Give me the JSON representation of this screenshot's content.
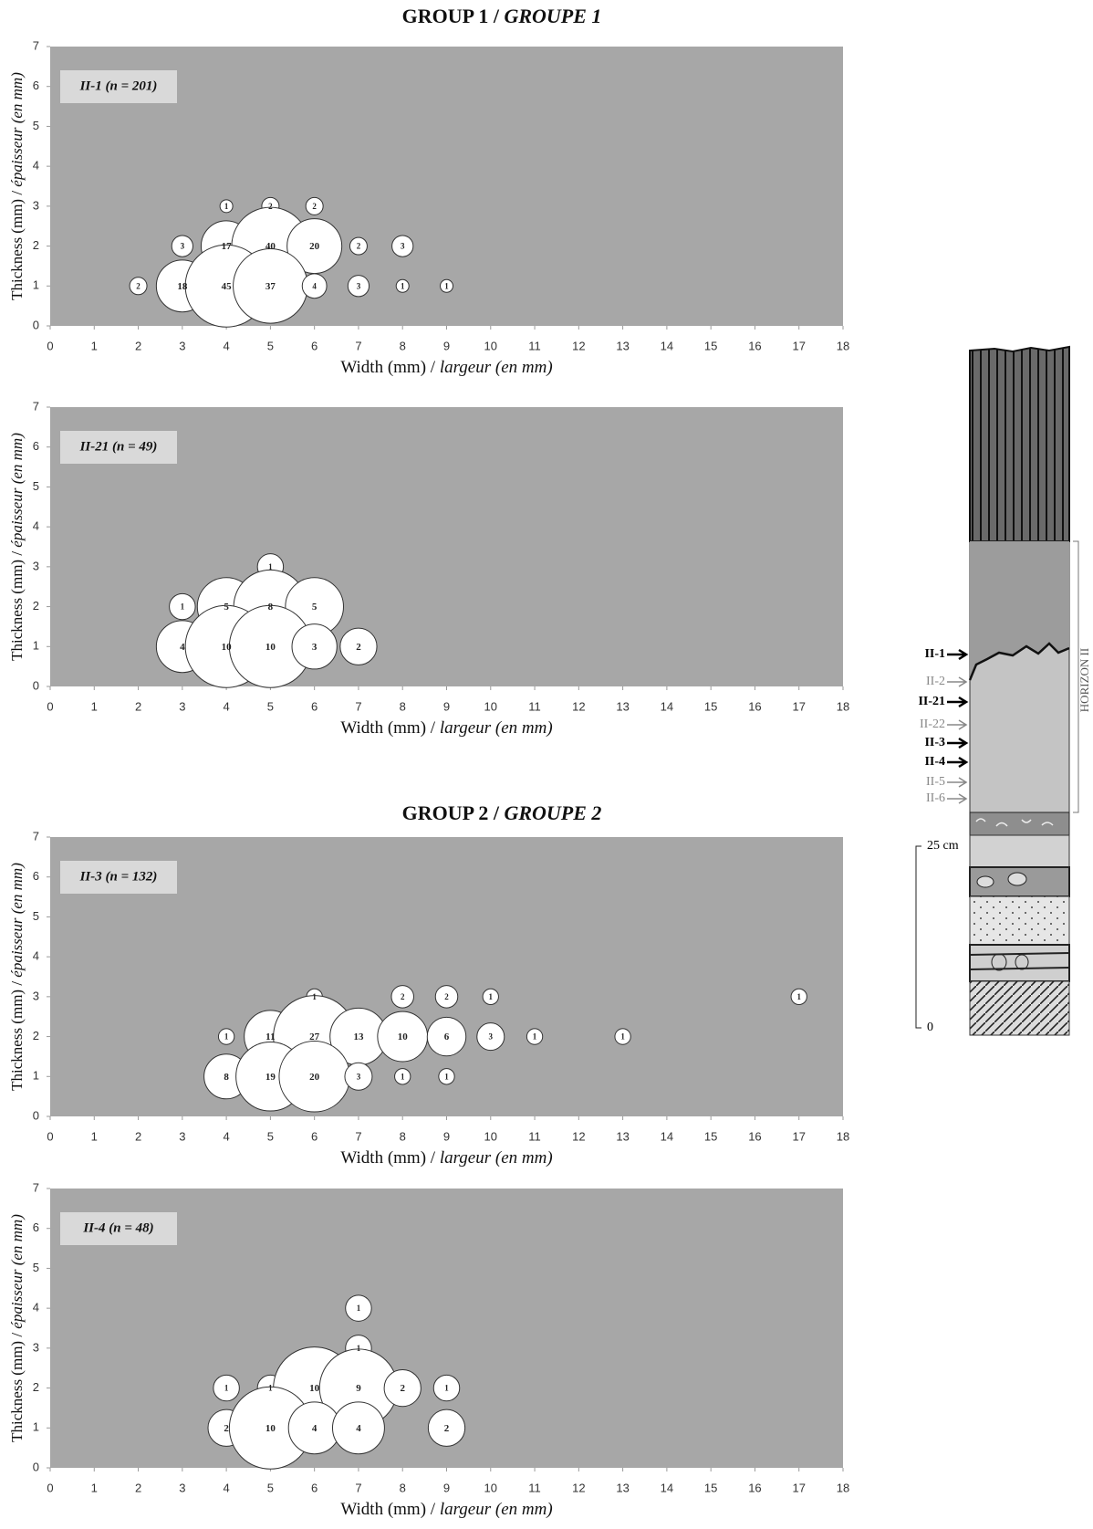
{
  "headings": [
    {
      "title": "GROUP 1 /",
      "title_italic": "GROUPE 1"
    },
    {
      "title": "GROUP 2 /",
      "title_italic": "GROUPE 2"
    }
  ],
  "chart_data": [
    {
      "type": "bubble",
      "title": "II-1 (n = 201)",
      "x_label": [
        "Width (mm) /",
        "largeur (en mm)"
      ],
      "y_label": [
        "Thickness (mm) /",
        "épaisseur (en mm)"
      ],
      "x": [
        4,
        5,
        6,
        3,
        4,
        5,
        6,
        7,
        8,
        2,
        3,
        4,
        5,
        6,
        7,
        8,
        9
      ],
      "y": [
        3,
        3,
        3,
        2,
        2,
        2,
        2,
        2,
        2,
        1,
        1,
        1,
        1,
        1,
        1,
        1,
        1
      ],
      "sizes": [
        1,
        2,
        2,
        3,
        17,
        40,
        20,
        2,
        3,
        2,
        18,
        45,
        37,
        4,
        3,
        1,
        1
      ],
      "xlim": [
        0,
        18
      ],
      "ylim": [
        0,
        7
      ],
      "xticks": [
        0,
        1,
        2,
        3,
        4,
        5,
        6,
        7,
        8,
        9,
        10,
        11,
        12,
        13,
        14,
        15,
        16,
        17,
        18
      ],
      "yticks": [
        0,
        1,
        2,
        3,
        4,
        5,
        6,
        7
      ],
      "color": "#ffffff"
    },
    {
      "type": "bubble",
      "title": "II-21 (n = 49)",
      "x_label": [
        "Width (mm) /",
        "largeur (en mm)"
      ],
      "y_label": [
        "Thickness (mm) /",
        "épaisseur (en mm)"
      ],
      "x": [
        5,
        3,
        4,
        5,
        6,
        3,
        4,
        5,
        6,
        7
      ],
      "y": [
        3,
        2,
        2,
        2,
        2,
        1,
        1,
        1,
        1,
        1
      ],
      "sizes": [
        1,
        1,
        5,
        8,
        5,
        4,
        10,
        10,
        3,
        2
      ],
      "xlim": [
        0,
        18
      ],
      "ylim": [
        0,
        7
      ],
      "xticks": [
        0,
        1,
        2,
        3,
        4,
        5,
        6,
        7,
        8,
        9,
        10,
        11,
        12,
        13,
        14,
        15,
        16,
        17,
        18
      ],
      "yticks": [
        0,
        1,
        2,
        3,
        4,
        5,
        6,
        7
      ],
      "color": "#ffffff"
    },
    {
      "type": "bubble",
      "title": "II-3 (n = 132)",
      "x_label": [
        "Width (mm) /",
        "largeur (en mm)"
      ],
      "y_label": [
        "Thickness (mm) /",
        "épaisseur (en mm)"
      ],
      "x": [
        6,
        8,
        9,
        10,
        17,
        4,
        5,
        6,
        7,
        8,
        9,
        10,
        11,
        13,
        4,
        5,
        6,
        7,
        8,
        9
      ],
      "y": [
        3,
        3,
        3,
        3,
        3,
        2,
        2,
        2,
        2,
        2,
        2,
        2,
        2,
        2,
        1,
        1,
        1,
        1,
        1,
        1
      ],
      "sizes": [
        1,
        2,
        2,
        1,
        1,
        1,
        11,
        27,
        13,
        10,
        6,
        3,
        1,
        1,
        8,
        19,
        20,
        3,
        1,
        1
      ],
      "xlim": [
        0,
        18
      ],
      "ylim": [
        0,
        7
      ],
      "xticks": [
        0,
        1,
        2,
        3,
        4,
        5,
        6,
        7,
        8,
        9,
        10,
        11,
        12,
        13,
        14,
        15,
        16,
        17,
        18
      ],
      "yticks": [
        0,
        1,
        2,
        3,
        4,
        5,
        6,
        7
      ],
      "color": "#ffffff"
    },
    {
      "type": "bubble",
      "title": "II-4 (n = 48)",
      "x_label": [
        "Width (mm) /",
        "largeur (en mm)"
      ],
      "y_label": [
        "Thickness (mm) /",
        "épaisseur (en mm)"
      ],
      "x": [
        7,
        7,
        4,
        5,
        6,
        7,
        8,
        9,
        4,
        5,
        6,
        7,
        9
      ],
      "y": [
        4,
        3,
        2,
        2,
        2,
        2,
        2,
        2,
        1,
        1,
        1,
        1,
        1
      ],
      "sizes": [
        1,
        1,
        1,
        1,
        10,
        9,
        2,
        1,
        2,
        10,
        4,
        4,
        2
      ],
      "xlim": [
        0,
        18
      ],
      "ylim": [
        0,
        7
      ],
      "xticks": [
        0,
        1,
        2,
        3,
        4,
        5,
        6,
        7,
        8,
        9,
        10,
        11,
        12,
        13,
        14,
        15,
        16,
        17,
        18
      ],
      "yticks": [
        0,
        1,
        2,
        3,
        4,
        5,
        6,
        7
      ],
      "color": "#ffffff"
    }
  ],
  "diagram": {
    "samples": [
      "II-1",
      "II-2",
      "II-21",
      "II-22",
      "II-3",
      "II-4",
      "II-5",
      "II-6"
    ],
    "horizon": "HORIZON II",
    "scale": [
      "25 cm",
      "0"
    ]
  }
}
